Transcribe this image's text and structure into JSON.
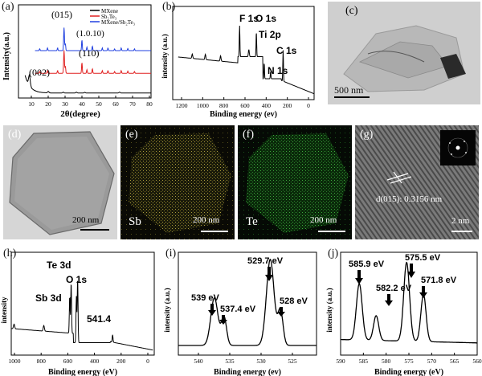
{
  "panels": {
    "a": {
      "label": "(a)",
      "ylabel": "Intensity(a.u.)",
      "xlabel": "2θ(degree)",
      "xticks": [
        "10",
        "20",
        "30",
        "40",
        "50",
        "60",
        "70",
        "80"
      ],
      "legend": [
        "MXene",
        "Sb₂Te₃",
        "MXene/Sb₂Te₃"
      ],
      "legend_colors": [
        "#000000",
        "#e02020",
        "#2040e0"
      ],
      "annotations": [
        "(015)",
        "(1.0.10)",
        "(110)",
        "(002)"
      ]
    },
    "b": {
      "label": "(b)",
      "ylabel": "intensity (a.u.)",
      "xlabel": "Binding energy (ev)",
      "xticks": [
        "1200",
        "1000",
        "800",
        "600",
        "400",
        "200",
        "0"
      ],
      "annotations": [
        "F 1s",
        "O 1s",
        "Ti 2p",
        "C 1s",
        "N 1s"
      ]
    },
    "c": {
      "label": "(c)",
      "scale": "500 nm"
    },
    "d": {
      "label": "(d)",
      "scale": "200 nm"
    },
    "e": {
      "label": "(e)",
      "scale": "200 nm",
      "element": "Sb"
    },
    "f": {
      "label": "(f)",
      "scale": "200 nm",
      "element": "Te"
    },
    "g": {
      "label": "(g)",
      "scale": "2 nm",
      "dspacing": "d(015): 0.3156 nm"
    },
    "h": {
      "label": "(h)",
      "ylabel": "intensity",
      "xlabel": "Binding energy (eV)",
      "xticks": [
        "1000",
        "800",
        "600",
        "400",
        "200",
        "0"
      ],
      "annotations": [
        "Te 3d",
        "O 1s",
        "Sb 3d",
        "541.4"
      ]
    },
    "i": {
      "label": "(i)",
      "ylabel": "intensity (a.u.)",
      "xlabel": "Binding energy (ev)",
      "xticks": [
        "540",
        "535",
        "530",
        "525"
      ],
      "annotations": [
        "539 eV",
        "537.4 eV",
        "529.7 eV",
        "528 eV"
      ]
    },
    "j": {
      "label": "(j)",
      "ylabel": "intensity (a.u.)",
      "xlabel": "Binding energy (eV)",
      "xticks": [
        "590",
        "585",
        "580",
        "575",
        "570",
        "565",
        "560"
      ],
      "annotations": [
        "585.9 eV",
        "582.2 eV",
        "575.5 eV",
        "571.8 eV"
      ]
    }
  },
  "chart_data": [
    {
      "type": "line",
      "title": "",
      "xlabel": "2θ(degree)",
      "ylabel": "Intensity(a.u.)",
      "xlim": [
        0,
        80
      ],
      "series": [
        {
          "name": "MXene",
          "x": [
            5,
            6.5,
            8,
            10,
            20,
            30,
            40,
            60,
            80
          ],
          "y": [
            1.2,
            1.1,
            0.5,
            0.25,
            0.2,
            0.15,
            0.12,
            0.1,
            0.1
          ]
        },
        {
          "name": "Sb₂Te₃",
          "x": [
            10,
            27.5,
            28,
            38.3,
            42,
            50,
            80
          ],
          "y": [
            1.2,
            2.5,
            1.2,
            1.8,
            1.3,
            1.3,
            1.2
          ]
        },
        {
          "name": "MXene/Sb₂Te₃",
          "x": [
            10,
            27.5,
            28,
            38.3,
            42,
            50,
            80
          ],
          "y": [
            2.5,
            3.8,
            2.5,
            3.1,
            2.7,
            2.6,
            2.5
          ]
        }
      ]
    },
    {
      "type": "line",
      "xlabel": "Binding energy (ev)",
      "ylabel": "intensity (a.u.)",
      "xlim": [
        1300,
        0
      ],
      "series": [
        {
          "x": [
            1250,
            1000,
            800,
            685,
            600,
            531,
            460,
            400,
            285,
            100,
            0
          ],
          "y": [
            0.35,
            0.45,
            0.5,
            0.85,
            0.55,
            0.8,
            0.65,
            0.25,
            0.55,
            0.05,
            0.0
          ]
        }
      ]
    },
    {
      "type": "line",
      "xlabel": "Binding energy (eV)",
      "ylabel": "intensity",
      "xlim": [
        1000,
        0
      ],
      "series": [
        {
          "x": [
            1000,
            800,
            600,
            577,
            530,
            400,
            200,
            0
          ],
          "y": [
            0.18,
            0.22,
            0.35,
            0.9,
            0.85,
            0.12,
            0.06,
            0.0
          ]
        }
      ]
    },
    {
      "type": "line",
      "xlabel": "Binding energy (ev)",
      "ylabel": "intensity (a.u.)",
      "xlim": [
        545,
        522
      ],
      "series": [
        {
          "x": [
            545,
            539,
            537.4,
            535,
            529.7,
            528,
            525,
            522
          ],
          "y": [
            0.05,
            0.42,
            0.3,
            0.07,
            0.72,
            0.32,
            0.05,
            0.04
          ]
        }
      ]
    },
    {
      "type": "line",
      "xlabel": "Binding energy (eV)",
      "ylabel": "intensity (a.u.)",
      "xlim": [
        590,
        560
      ],
      "series": [
        {
          "x": [
            590,
            585.9,
            582.2,
            575.5,
            571.8,
            565,
            560
          ],
          "y": [
            0.1,
            0.62,
            0.33,
            0.8,
            0.52,
            0.08,
            0.07
          ]
        }
      ]
    }
  ]
}
